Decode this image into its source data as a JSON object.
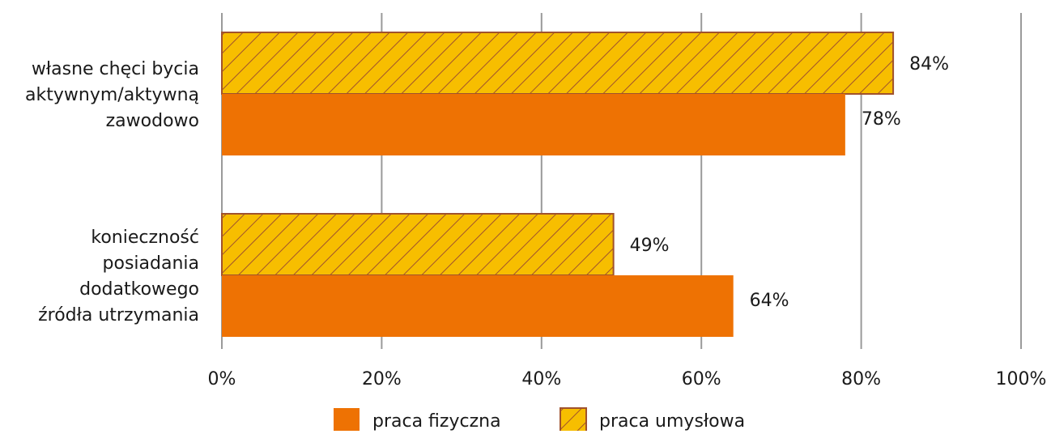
{
  "chart_data": {
    "type": "bar",
    "orientation": "horizontal",
    "categories": [
      [
        "własne chęci bycia",
        "aktywnym/aktywną",
        "zawodowo"
      ],
      [
        "konieczność",
        "posiadania",
        "dodatkowego",
        "źródła utrzymania"
      ]
    ],
    "series": [
      {
        "name": "praca umysłowa",
        "values": [
          84,
          49
        ],
        "labels": [
          "84%",
          "49%"
        ],
        "color": "#F7BE00",
        "pattern": "hatch",
        "stroke": "#A0522D"
      },
      {
        "name": "praca fizyczna",
        "values": [
          78,
          64
        ],
        "labels": [
          "78%",
          "64%"
        ],
        "color": "#EE7203",
        "pattern": "solid"
      }
    ],
    "xlim": [
      0,
      100
    ],
    "xticks": [
      "0%",
      "20%",
      "40%",
      "60%",
      "80%",
      "100%"
    ],
    "grid": "vertical",
    "legend_position": "bottom",
    "legend_order": [
      "praca fizyczna",
      "praca umysłowa"
    ]
  }
}
